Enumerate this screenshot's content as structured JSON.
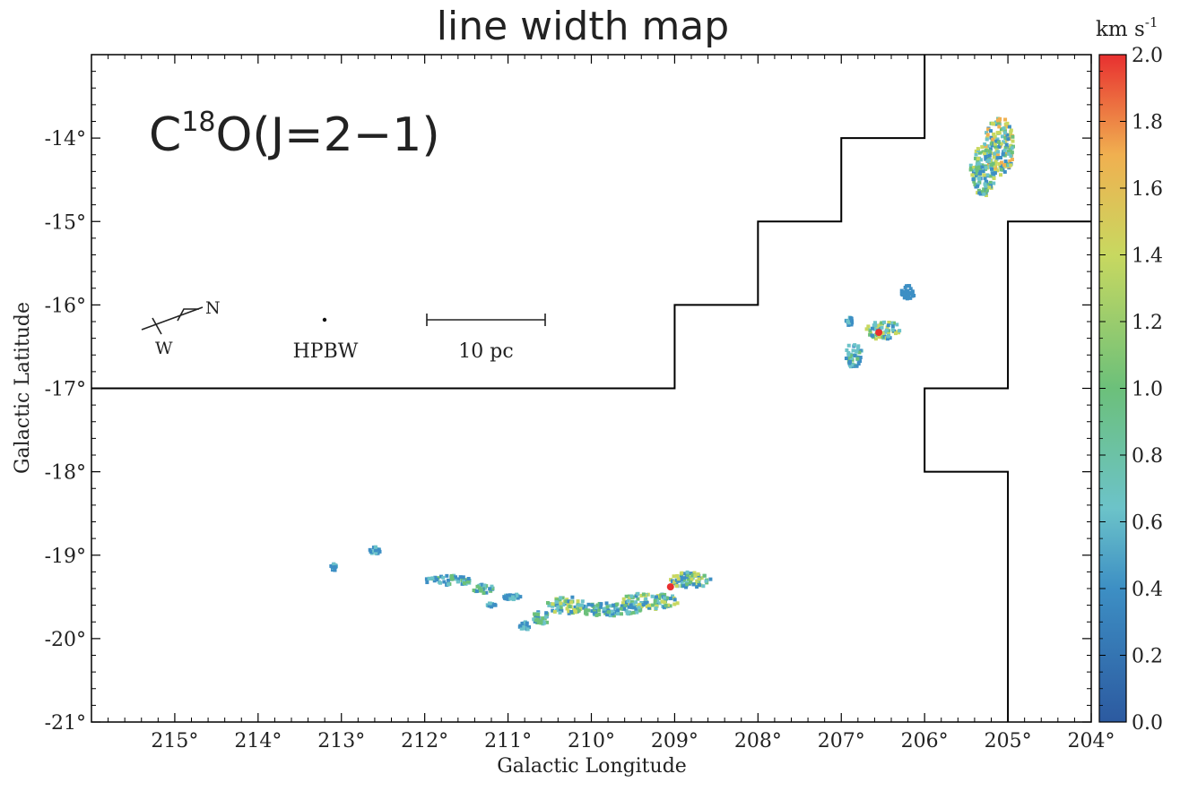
{
  "title": "line width map",
  "molecule_label": {
    "prefix": "C",
    "superscript": "18",
    "suffix": "O(J=2−1)"
  },
  "colorbar": {
    "unit_base": "km s",
    "unit_exp": "-1",
    "ticks": [
      "2.0",
      "1.8",
      "1.6",
      "1.4",
      "1.2",
      "1.0",
      "0.8",
      "0.6",
      "0.4",
      "0.2",
      "0.0"
    ],
    "range": [
      0.0,
      2.0
    ],
    "colors": [
      "#2c5aa0",
      "#3d8fc4",
      "#6cc3c9",
      "#6cc07a",
      "#c8d860",
      "#f0b050",
      "#e83030"
    ]
  },
  "axes": {
    "xlabel": "Galactic Longitude",
    "ylabel": "Galactic Latitude",
    "xlim": [
      216,
      204
    ],
    "ylim": [
      -21,
      -13
    ],
    "xticks": [
      "215°",
      "214°",
      "213°",
      "212°",
      "211°",
      "210°",
      "209°",
      "208°",
      "207°",
      "206°",
      "205°",
      "204°"
    ],
    "xtick_values": [
      215,
      214,
      213,
      212,
      211,
      210,
      209,
      208,
      207,
      206,
      205,
      204
    ],
    "yticks": [
      "-14°",
      "-15°",
      "-16°",
      "-17°",
      "-18°",
      "-19°",
      "-20°",
      "-21°"
    ],
    "ytick_values": [
      -14,
      -15,
      -16,
      -17,
      -18,
      -19,
      -20,
      -21
    ]
  },
  "annotations": {
    "compass_north": "N",
    "compass_west": "W",
    "beam_label": "HPBW",
    "scale_label": "10 pc"
  },
  "coverage_boundary": {
    "points": [
      [
        216,
        -17
      ],
      [
        209,
        -17
      ],
      [
        209,
        -16
      ],
      [
        208,
        -16
      ],
      [
        208,
        -15
      ],
      [
        207,
        -15
      ],
      [
        207,
        -14
      ],
      [
        206,
        -14
      ],
      [
        206,
        -13
      ]
    ]
  },
  "coverage_boundary_right": {
    "points": [
      [
        204,
        -15
      ],
      [
        205,
        -15
      ],
      [
        205,
        -17
      ],
      [
        206,
        -17
      ],
      [
        206,
        -18
      ],
      [
        205,
        -18
      ],
      [
        205,
        -21
      ]
    ]
  },
  "chart_data": {
    "type": "heatmap",
    "title": "line width map",
    "xlabel": "Galactic Longitude",
    "ylabel": "Galactic Latitude",
    "xlim": [
      216,
      204
    ],
    "ylim": [
      -21,
      -13
    ],
    "value_range": [
      0.0,
      2.0
    ],
    "unit": "km s-1"
  }
}
